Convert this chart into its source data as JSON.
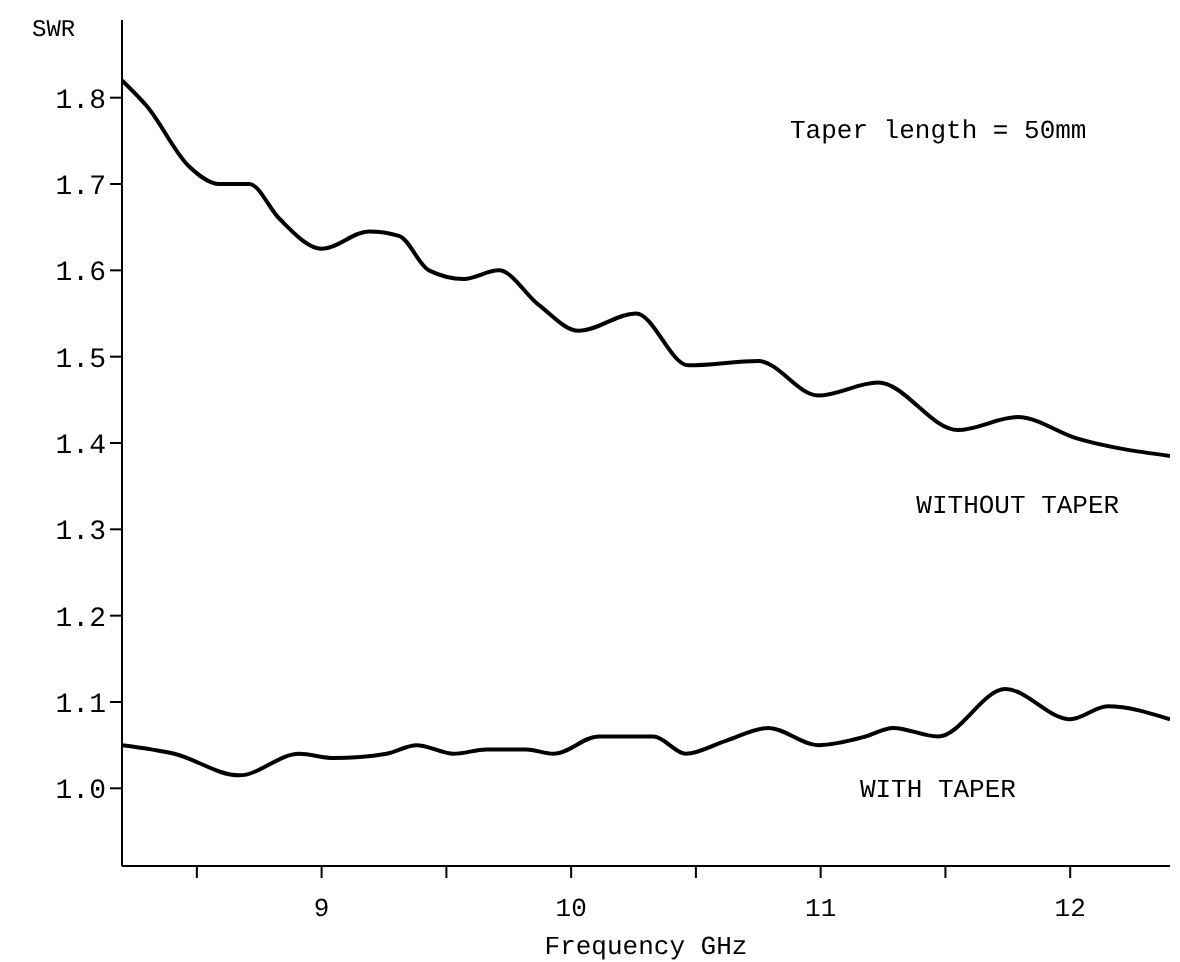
{
  "chart_data": {
    "type": "line",
    "xlabel": "Frequency GHz",
    "ylabel": "SWR",
    "annotations": [
      "Taper length = 50mm"
    ],
    "xlim": [
      8.2,
      12.4
    ],
    "ylim": [
      0.91,
      1.89
    ],
    "xticks": [
      {
        "value": 8.5,
        "label": null
      },
      9,
      {
        "value": 9.5,
        "label": null
      },
      10,
      {
        "value": 10.5,
        "label": null
      },
      11,
      {
        "value": 11.5,
        "label": null
      },
      12
    ],
    "yticks": [
      {
        "value": 1.0,
        "label": "1.0"
      },
      1.1,
      1.2,
      1.3,
      1.4,
      1.5,
      1.6,
      1.7,
      1.8
    ],
    "marker": "none",
    "line_style": "solid",
    "series": [
      {
        "name": "WITHOUT TAPER",
        "color": "#000000",
        "x": [
          8.2,
          8.3,
          8.47,
          8.59,
          8.71,
          8.83,
          9.0,
          9.19,
          9.31,
          9.43,
          9.57,
          9.71,
          9.87,
          10.03,
          10.26,
          10.47,
          10.75,
          10.99,
          11.23,
          11.55,
          11.79,
          12.03,
          12.4
        ],
        "values": [
          1.82,
          1.79,
          1.72,
          1.7,
          1.7,
          1.66,
          1.625,
          1.645,
          1.64,
          1.6,
          1.59,
          1.6,
          1.56,
          1.53,
          1.55,
          1.49,
          1.495,
          1.455,
          1.47,
          1.415,
          1.43,
          1.405,
          1.385
        ]
      },
      {
        "name": "WITH TAPER",
        "color": "#000000",
        "x": [
          8.2,
          8.41,
          8.67,
          8.91,
          9.05,
          9.26,
          9.38,
          9.53,
          9.66,
          9.82,
          9.93,
          10.11,
          10.33,
          10.46,
          10.62,
          10.79,
          10.99,
          11.18,
          11.29,
          11.47,
          11.74,
          12.0,
          12.15,
          12.4
        ],
        "values": [
          1.05,
          1.04,
          1.015,
          1.04,
          1.035,
          1.04,
          1.05,
          1.04,
          1.045,
          1.045,
          1.04,
          1.06,
          1.06,
          1.04,
          1.055,
          1.07,
          1.05,
          1.06,
          1.07,
          1.06,
          1.115,
          1.08,
          1.095,
          1.08
        ]
      }
    ]
  }
}
